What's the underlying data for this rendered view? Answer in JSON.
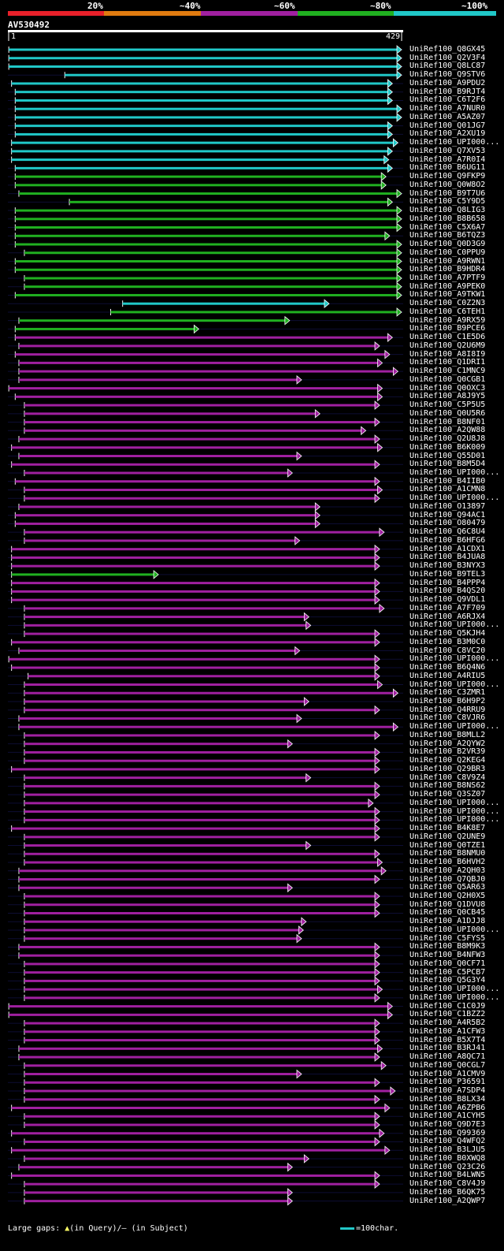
{
  "legend": {
    "labels": [
      "20%",
      "~40%",
      "~60%",
      "~80%",
      "~100%"
    ],
    "colors": [
      "#e8202a",
      "#e07b10",
      "#a020a0",
      "#20b020",
      "#20c8c8"
    ]
  },
  "query": {
    "id": "AV530492",
    "start": "1",
    "end": "429"
  },
  "hits": [
    {
      "name": "UniRef100_Q8GX45",
      "color": "#20c8c8",
      "s": 1,
      "e": 429
    },
    {
      "name": "UniRef100_Q2V3F4",
      "color": "#20c8c8",
      "s": 1,
      "e": 429
    },
    {
      "name": "UniRef100_Q8LC87",
      "color": "#20c8c8",
      "s": 1,
      "e": 429
    },
    {
      "name": "UniRef100_Q9STV6",
      "color": "#20c8c8",
      "s": 62,
      "e": 429
    },
    {
      "name": "UniRef100_A9PDU2",
      "color": "#20c8c8",
      "s": 4,
      "e": 419
    },
    {
      "name": "UniRef100_B9RJT4",
      "color": "#20c8c8",
      "s": 8,
      "e": 419
    },
    {
      "name": "UniRef100_C6T2F6",
      "color": "#20c8c8",
      "s": 8,
      "e": 419
    },
    {
      "name": "UniRef100_A7NUR0",
      "color": "#20c8c8",
      "s": 8,
      "e": 429
    },
    {
      "name": "UniRef100_A5AZ07",
      "color": "#20c8c8",
      "s": 8,
      "e": 429
    },
    {
      "name": "UniRef100_Q01JG7",
      "color": "#20c8c8",
      "s": 8,
      "e": 419
    },
    {
      "name": "UniRef100_A2XU19",
      "color": "#20c8c8",
      "s": 8,
      "e": 419
    },
    {
      "name": "UniRef100_UPI000...",
      "color": "#20c8c8",
      "s": 4,
      "e": 425
    },
    {
      "name": "UniRef100_Q7XV53",
      "color": "#20c8c8",
      "s": 4,
      "e": 419
    },
    {
      "name": "UniRef100_A7R0I4",
      "color": "#20c8c8",
      "s": 4,
      "e": 415
    },
    {
      "name": "UniRef100_B6UG11",
      "color": "#20c8c8",
      "s": 8,
      "e": 419
    },
    {
      "name": "UniRef100_Q9FKP9",
      "color": "#20b020",
      "s": 8,
      "e": 412
    },
    {
      "name": "UniRef100_Q0W8O2",
      "color": "#20b020",
      "s": 8,
      "e": 412
    },
    {
      "name": "UniRef100_B9T7U6",
      "color": "#20b020",
      "s": 12,
      "e": 429
    },
    {
      "name": "UniRef100_C5Y9D5",
      "color": "#20b020",
      "s": 67,
      "e": 419
    },
    {
      "name": "UniRef100_Q8LIG3",
      "color": "#20b020",
      "s": 8,
      "e": 429
    },
    {
      "name": "UniRef100_B8B658",
      "color": "#20b020",
      "s": 8,
      "e": 429
    },
    {
      "name": "UniRef100_C5X6A7",
      "color": "#20b020",
      "s": 8,
      "e": 429
    },
    {
      "name": "UniRef100_B6TQZ3",
      "color": "#20b020",
      "s": 8,
      "e": 416
    },
    {
      "name": "UniRef100_Q0D3G9",
      "color": "#20b020",
      "s": 8,
      "e": 429
    },
    {
      "name": "UniRef100_C0PPU9",
      "color": "#20b020",
      "s": 18,
      "e": 429
    },
    {
      "name": "UniRef100_A9RWN1",
      "color": "#20b020",
      "s": 8,
      "e": 429
    },
    {
      "name": "UniRef100_B9HDR4",
      "color": "#20b020",
      "s": 8,
      "e": 429
    },
    {
      "name": "UniRef100_A7PTF9",
      "color": "#20b020",
      "s": 18,
      "e": 429
    },
    {
      "name": "UniRef100_A9PEK0",
      "color": "#20b020",
      "s": 18,
      "e": 429
    },
    {
      "name": "UniRef100_A9TKW1",
      "color": "#20b020",
      "s": 8,
      "e": 429
    },
    {
      "name": "UniRef100_C0Z2N3",
      "color": "#20c8c8",
      "s": 125,
      "e": 350
    },
    {
      "name": "UniRef100_C6TEH1",
      "color": "#20b020",
      "s": 112,
      "e": 429
    },
    {
      "name": "UniRef100_A9RX59",
      "color": "#20b020",
      "s": 12,
      "e": 307
    },
    {
      "name": "UniRef100_B9PCE6",
      "color": "#20b020",
      "s": 8,
      "e": 208
    },
    {
      "name": "UniRef100_C1E5D6",
      "color": "#a020a0",
      "s": 8,
      "e": 419
    },
    {
      "name": "UniRef100_Q2U6M9",
      "color": "#a020a0",
      "s": 12,
      "e": 405
    },
    {
      "name": "UniRef100_A8I8I9",
      "color": "#a020a0",
      "s": 8,
      "e": 416
    },
    {
      "name": "UniRef100_Q1DRI1",
      "color": "#a020a0",
      "s": 12,
      "e": 408
    },
    {
      "name": "UniRef100_C1MNC9",
      "color": "#a020a0",
      "s": 12,
      "e": 425
    },
    {
      "name": "UniRef100_Q0CGB1",
      "color": "#a020a0",
      "s": 12,
      "e": 320
    },
    {
      "name": "UniRef100_Q0OXC3",
      "color": "#a020a0",
      "s": 1,
      "e": 408
    },
    {
      "name": "UniRef100_A8J9Y5",
      "color": "#a020a0",
      "s": 8,
      "e": 408
    },
    {
      "name": "UniRef100_C5P5U5",
      "color": "#a020a0",
      "s": 18,
      "e": 405
    },
    {
      "name": "UniRef100_Q0U5R6",
      "color": "#a020a0",
      "s": 18,
      "e": 340
    },
    {
      "name": "UniRef100_B8NF01",
      "color": "#a020a0",
      "s": 18,
      "e": 405
    },
    {
      "name": "UniRef100_A2QW88",
      "color": "#a020a0",
      "s": 18,
      "e": 390
    },
    {
      "name": "UniRef100_Q2U8J8",
      "color": "#a020a0",
      "s": 12,
      "e": 405
    },
    {
      "name": "UniRef100_B6K009",
      "color": "#a020a0",
      "s": 4,
      "e": 408
    },
    {
      "name": "UniRef100_Q55D01",
      "color": "#a020a0",
      "s": 12,
      "e": 320
    },
    {
      "name": "UniRef100_B8M5D4",
      "color": "#a020a0",
      "s": 4,
      "e": 405
    },
    {
      "name": "UniRef100_UPI000...",
      "color": "#a020a0",
      "s": 18,
      "e": 310
    },
    {
      "name": "UniRef100_B4IIB0",
      "color": "#a020a0",
      "s": 8,
      "e": 405
    },
    {
      "name": "UniRef100_A1CMN8",
      "color": "#a020a0",
      "s": 18,
      "e": 408
    },
    {
      "name": "UniRef100_UPI000...",
      "color": "#a020a0",
      "s": 18,
      "e": 405
    },
    {
      "name": "UniRef100_O13897",
      "color": "#a020a0",
      "s": 12,
      "e": 340
    },
    {
      "name": "UniRef100_Q94AC1",
      "color": "#a020a0",
      "s": 8,
      "e": 340
    },
    {
      "name": "UniRef100_O80479",
      "color": "#a020a0",
      "s": 8,
      "e": 340
    },
    {
      "name": "UniRef100_Q6C8U4",
      "color": "#a020a0",
      "s": 18,
      "e": 410
    },
    {
      "name": "UniRef100_B6HFG6",
      "color": "#a020a0",
      "s": 18,
      "e": 318
    },
    {
      "name": "UniRef100_A1CDX1",
      "color": "#a020a0",
      "s": 4,
      "e": 405
    },
    {
      "name": "UniRef100_B4JUA8",
      "color": "#a020a0",
      "s": 4,
      "e": 405
    },
    {
      "name": "UniRef100_B3NYX3",
      "color": "#a020a0",
      "s": 4,
      "e": 405
    },
    {
      "name": "UniRef100_B9TEL3",
      "color": "#20b020",
      "s": 4,
      "e": 164
    },
    {
      "name": "UniRef100_B4PPP4",
      "color": "#a020a0",
      "s": 4,
      "e": 405
    },
    {
      "name": "UniRef100_B4QS20",
      "color": "#a020a0",
      "s": 4,
      "e": 405
    },
    {
      "name": "UniRef100_Q9VDL1",
      "color": "#a020a0",
      "s": 4,
      "e": 405
    },
    {
      "name": "UniRef100_A7F709",
      "color": "#a020a0",
      "s": 18,
      "e": 410
    },
    {
      "name": "UniRef100_A6RJX4",
      "color": "#a020a0",
      "s": 18,
      "e": 328
    },
    {
      "name": "UniRef100_UPI000...",
      "color": "#a020a0",
      "s": 18,
      "e": 330
    },
    {
      "name": "UniRef100_Q5KJH4",
      "color": "#a020a0",
      "s": 18,
      "e": 405
    },
    {
      "name": "UniRef100_B3M0C0",
      "color": "#a020a0",
      "s": 4,
      "e": 405
    },
    {
      "name": "UniRef100_C8VC20",
      "color": "#a020a0",
      "s": 12,
      "e": 318
    },
    {
      "name": "UniRef100_UPI000...",
      "color": "#a020a0",
      "s": 1,
      "e": 405
    },
    {
      "name": "UniRef100_B6Q4N6",
      "color": "#a020a0",
      "s": 4,
      "e": 405
    },
    {
      "name": "UniRef100_A4RIU5",
      "color": "#a020a0",
      "s": 22,
      "e": 405
    },
    {
      "name": "UniRef100_UPI000...",
      "color": "#a020a0",
      "s": 18,
      "e": 408
    },
    {
      "name": "UniRef100_C3ZMR1",
      "color": "#a020a0",
      "s": 18,
      "e": 425
    },
    {
      "name": "UniRef100_B6H9P2",
      "color": "#a020a0",
      "s": 18,
      "e": 328
    },
    {
      "name": "UniRef100_Q4RRU9",
      "color": "#a020a0",
      "s": 18,
      "e": 405
    },
    {
      "name": "UniRef100_C8VJR6",
      "color": "#a020a0",
      "s": 12,
      "e": 320
    },
    {
      "name": "UniRef100_UPI000...",
      "color": "#a020a0",
      "s": 12,
      "e": 425
    },
    {
      "name": "UniRef100_B8MLL2",
      "color": "#a020a0",
      "s": 18,
      "e": 405
    },
    {
      "name": "UniRef100_A2QYW2",
      "color": "#a020a0",
      "s": 18,
      "e": 310
    },
    {
      "name": "UniRef100_B2VR39",
      "color": "#a020a0",
      "s": 18,
      "e": 405
    },
    {
      "name": "UniRef100_Q2KEG4",
      "color": "#a020a0",
      "s": 18,
      "e": 405
    },
    {
      "name": "UniRef100_Q29BR3",
      "color": "#a020a0",
      "s": 4,
      "e": 405
    },
    {
      "name": "UniRef100_C8V9Z4",
      "color": "#a020a0",
      "s": 18,
      "e": 330
    },
    {
      "name": "UniRef100_B8NS62",
      "color": "#a020a0",
      "s": 18,
      "e": 405
    },
    {
      "name": "UniRef100_Q3SZ07",
      "color": "#a020a0",
      "s": 18,
      "e": 405
    },
    {
      "name": "UniRef100_UPI000...",
      "color": "#a020a0",
      "s": 18,
      "e": 398
    },
    {
      "name": "UniRef100_UPI000...",
      "color": "#a020a0",
      "s": 18,
      "e": 405
    },
    {
      "name": "UniRef100_UPI000...",
      "color": "#a020a0",
      "s": 18,
      "e": 405
    },
    {
      "name": "UniRef100_B4K8E7",
      "color": "#a020a0",
      "s": 4,
      "e": 405
    },
    {
      "name": "UniRef100_Q2UNE9",
      "color": "#a020a0",
      "s": 18,
      "e": 405
    },
    {
      "name": "UniRef100_Q0TZE1",
      "color": "#a020a0",
      "s": 18,
      "e": 330
    },
    {
      "name": "UniRef100_B8NMU0",
      "color": "#a020a0",
      "s": 18,
      "e": 405
    },
    {
      "name": "UniRef100_B6HVH2",
      "color": "#a020a0",
      "s": 18,
      "e": 408
    },
    {
      "name": "UniRef100_A2QH03",
      "color": "#a020a0",
      "s": 12,
      "e": 412
    },
    {
      "name": "UniRef100_Q7QBJ0",
      "color": "#a020a0",
      "s": 12,
      "e": 405
    },
    {
      "name": "UniRef100_Q5AR63",
      "color": "#a020a0",
      "s": 12,
      "e": 310
    },
    {
      "name": "UniRef100_Q2H0X5",
      "color": "#a020a0",
      "s": 18,
      "e": 405
    },
    {
      "name": "UniRef100_Q1DVU8",
      "color": "#a020a0",
      "s": 18,
      "e": 405
    },
    {
      "name": "UniRef100_Q0CB45",
      "color": "#a020a0",
      "s": 18,
      "e": 405
    },
    {
      "name": "UniRef100_A1DJJ8",
      "color": "#a020a0",
      "s": 18,
      "e": 325
    },
    {
      "name": "UniRef100_UPI000...",
      "color": "#a020a0",
      "s": 18,
      "e": 322
    },
    {
      "name": "UniRef100_C5FYS5",
      "color": "#a020a0",
      "s": 18,
      "e": 320
    },
    {
      "name": "UniRef100_B8M9K3",
      "color": "#a020a0",
      "s": 12,
      "e": 405
    },
    {
      "name": "UniRef100_B4NFW3",
      "color": "#a020a0",
      "s": 12,
      "e": 405
    },
    {
      "name": "UniRef100_Q0CF71",
      "color": "#a020a0",
      "s": 18,
      "e": 405
    },
    {
      "name": "UniRef100_C5PCB7",
      "color": "#a020a0",
      "s": 18,
      "e": 405
    },
    {
      "name": "UniRef100_Q5G3Y4",
      "color": "#a020a0",
      "s": 18,
      "e": 405
    },
    {
      "name": "UniRef100_UPI000...",
      "color": "#a020a0",
      "s": 18,
      "e": 408
    },
    {
      "name": "UniRef100_UPI000...",
      "color": "#a020a0",
      "s": 18,
      "e": 405
    },
    {
      "name": "UniRef100_C1C0J9",
      "color": "#a020a0",
      "s": 1,
      "e": 419
    },
    {
      "name": "UniRef100_C1BZZ2",
      "color": "#a020a0",
      "s": 1,
      "e": 419
    },
    {
      "name": "UniRef100_A4R5B2",
      "color": "#a020a0",
      "s": 18,
      "e": 405
    },
    {
      "name": "UniRef100_A1CFW3",
      "color": "#a020a0",
      "s": 18,
      "e": 405
    },
    {
      "name": "UniRef100_B5X7T4",
      "color": "#a020a0",
      "s": 18,
      "e": 405
    },
    {
      "name": "UniRef100_B3RJ41",
      "color": "#a020a0",
      "s": 12,
      "e": 408
    },
    {
      "name": "UniRef100_A8QC71",
      "color": "#a020a0",
      "s": 12,
      "e": 405
    },
    {
      "name": "UniRef100_Q0CGL7",
      "color": "#a020a0",
      "s": 18,
      "e": 412
    },
    {
      "name": "UniRef100_A1CMV9",
      "color": "#a020a0",
      "s": 18,
      "e": 320
    },
    {
      "name": "UniRef100_P36591",
      "color": "#a020a0",
      "s": 18,
      "e": 405
    },
    {
      "name": "UniRef100_A7SDP4",
      "color": "#a020a0",
      "s": 18,
      "e": 422
    },
    {
      "name": "UniRef100_B8LX34",
      "color": "#a020a0",
      "s": 18,
      "e": 405
    },
    {
      "name": "UniRef100_A6ZPB6",
      "color": "#a020a0",
      "s": 4,
      "e": 416
    },
    {
      "name": "UniRef100_A1CYH5",
      "color": "#a020a0",
      "s": 18,
      "e": 405
    },
    {
      "name": "UniRef100_Q9D7E3",
      "color": "#a020a0",
      "s": 18,
      "e": 405
    },
    {
      "name": "UniRef100_Q99369",
      "color": "#a020a0",
      "s": 4,
      "e": 410
    },
    {
      "name": "UniRef100_Q4WFQ2",
      "color": "#a020a0",
      "s": 18,
      "e": 405
    },
    {
      "name": "UniRef100_B3LJU5",
      "color": "#a020a0",
      "s": 4,
      "e": 416
    },
    {
      "name": "UniRef100_B0XWQ8",
      "color": "#a020a0",
      "s": 18,
      "e": 328
    },
    {
      "name": "UniRef100_Q23C26",
      "color": "#a020a0",
      "s": 12,
      "e": 310
    },
    {
      "name": "UniRef100_B4LWN5",
      "color": "#a020a0",
      "s": 4,
      "e": 405
    },
    {
      "name": "UniRef100_C8V4J9",
      "color": "#a020a0",
      "s": 18,
      "e": 405
    },
    {
      "name": "UniRef100_B6QK75",
      "color": "#a020a0",
      "s": 18,
      "e": 310
    },
    {
      "name": "UniRef100_A2QWP7",
      "color": "#a020a0",
      "s": 18,
      "e": 310
    }
  ],
  "footer": {
    "gaps_label": "Large gaps:",
    "query_glyph": "▲",
    "query_label": "(in Query)/",
    "subject_glyph": "–",
    "subject_label": " (in Subject)",
    "scale_label": "=100char."
  }
}
